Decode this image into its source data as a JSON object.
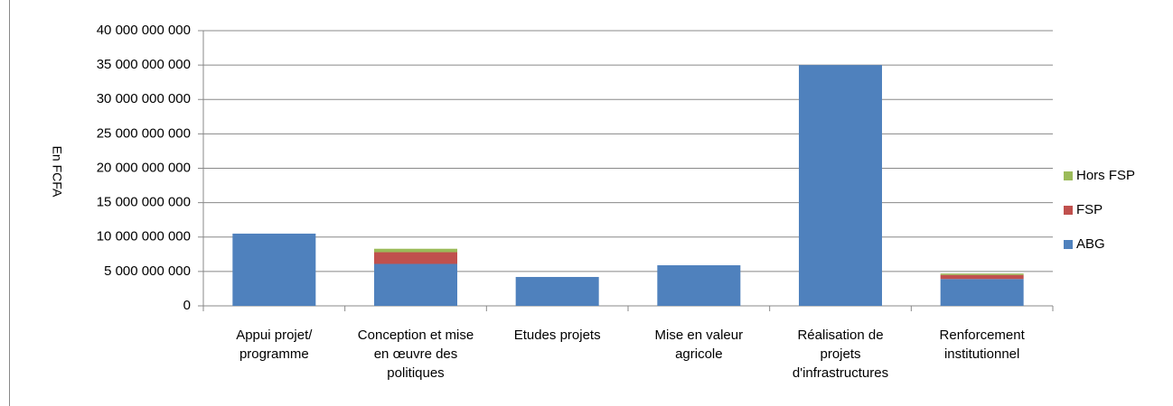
{
  "chart_data": {
    "type": "stacked_bar",
    "y_label": "En FCFA",
    "categories": [
      "Appui projet/ programme",
      "Conception et mise en œuvre des politiques",
      "Etudes projets",
      "Mise en valeur agricole",
      "Réalisation de projets d'infrastructures",
      "Renforcement institutionnel"
    ],
    "series": [
      {
        "name": "ABG",
        "color": "#4f81bd",
        "values": [
          10500000000,
          6100000000,
          4200000000,
          5900000000,
          35000000000,
          3900000000
        ]
      },
      {
        "name": "FSP",
        "color": "#c0504d",
        "values": [
          0,
          1700000000,
          0,
          0,
          0,
          600000000
        ]
      },
      {
        "name": "Hors FSP",
        "color": "#9bbb59",
        "values": [
          0,
          500000000,
          0,
          0,
          0,
          200000000
        ]
      }
    ],
    "ylim": [
      0,
      40000000000
    ],
    "yticks": [
      0,
      {
        "value": 5000000000,
        "label": "5 000 000 000"
      },
      {
        "value": 10000000000,
        "label": "10 000 000 000"
      },
      {
        "value": 15000000000,
        "label": "15 000 000 000"
      },
      {
        "value": 20000000000,
        "label": "20 000 000 000"
      },
      {
        "value": 25000000000,
        "label": "25 000 000 000"
      },
      {
        "value": 30000000000,
        "label": "30 000 000 000"
      },
      {
        "value": 35000000000,
        "label": "35 000 000 000"
      },
      {
        "value": 40000000000,
        "label": "40 000 000 000"
      }
    ],
    "grid": true,
    "legend": "right"
  }
}
